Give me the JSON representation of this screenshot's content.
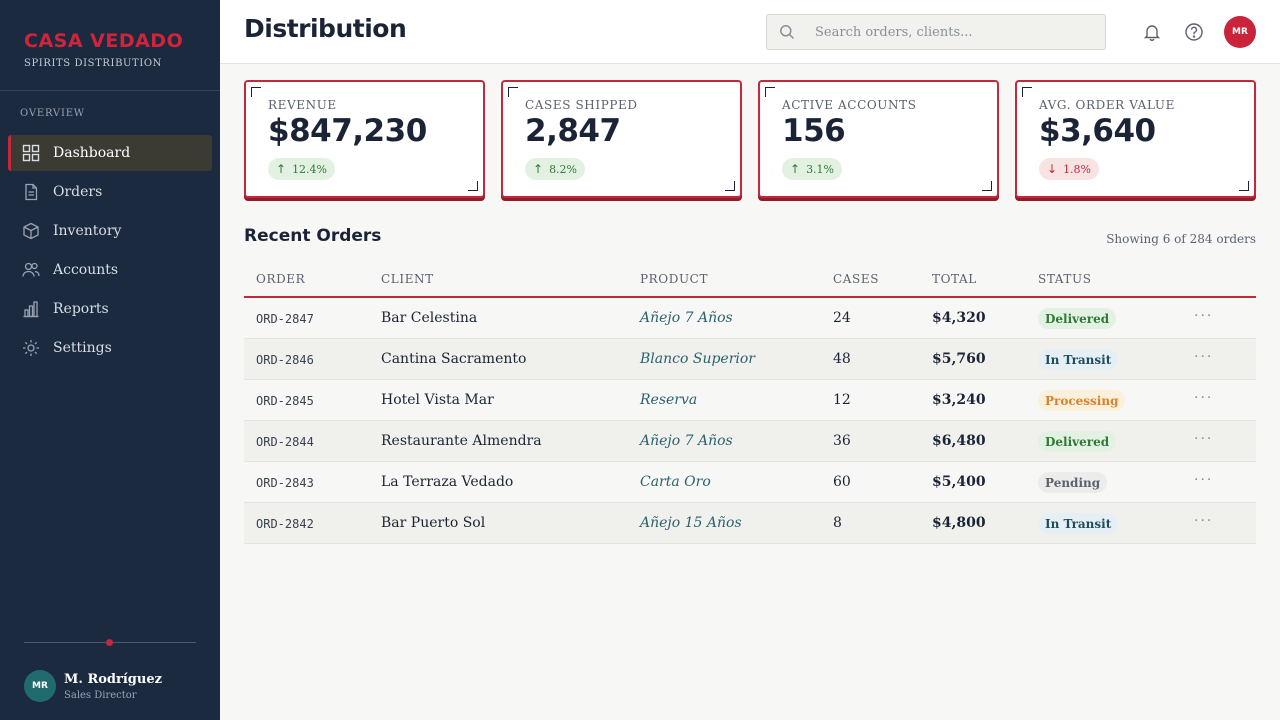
{
  "brand": {
    "name": "CASA VEDADO",
    "subtitle": "SPIRITS DISTRIBUTION"
  },
  "sidebar": {
    "section_label": "OVERVIEW",
    "items": [
      {
        "label": "Dashboard",
        "icon": "grid-icon",
        "active": true
      },
      {
        "label": "Orders",
        "icon": "document-icon",
        "active": false
      },
      {
        "label": "Inventory",
        "icon": "box-icon",
        "active": false
      },
      {
        "label": "Accounts",
        "icon": "users-icon",
        "active": false
      },
      {
        "label": "Reports",
        "icon": "bar-chart-icon",
        "active": false
      },
      {
        "label": "Settings",
        "icon": "gear-icon",
        "active": false
      }
    ]
  },
  "user": {
    "initials": "MR",
    "name": "M. Rodríguez",
    "role": "Sales Director"
  },
  "header": {
    "title": "Distribution",
    "search_placeholder": "Search orders, clients...",
    "avatar_initials": "MR"
  },
  "kpis": [
    {
      "label": "REVENUE",
      "value": "$847,230",
      "delta": "12.4%",
      "direction": "up"
    },
    {
      "label": "CASES SHIPPED",
      "value": "2,847",
      "delta": "8.2%",
      "direction": "up"
    },
    {
      "label": "ACTIVE ACCOUNTS",
      "value": "156",
      "delta": "3.1%",
      "direction": "up"
    },
    {
      "label": "AVG. ORDER VALUE",
      "value": "$3,640",
      "delta": "1.8%",
      "direction": "down"
    }
  ],
  "orders": {
    "title": "Recent Orders",
    "meta": "Showing 6 of 284 orders",
    "columns": [
      "ORDER",
      "CLIENT",
      "PRODUCT",
      "CASES",
      "TOTAL",
      "STATUS"
    ],
    "rows": [
      {
        "order": "ORD-2847",
        "client": "Bar Celestina",
        "product": "Añejo 7 Años",
        "cases": "24",
        "total": "$4,320",
        "status": "Delivered"
      },
      {
        "order": "ORD-2846",
        "client": "Cantina Sacramento",
        "product": "Blanco Superior",
        "cases": "48",
        "total": "$5,760",
        "status": "In Transit"
      },
      {
        "order": "ORD-2845",
        "client": "Hotel Vista Mar",
        "product": "Reserva",
        "cases": "12",
        "total": "$3,240",
        "status": "Processing"
      },
      {
        "order": "ORD-2844",
        "client": "Restaurante Almendra",
        "product": "Añejo 7 Años",
        "cases": "36",
        "total": "$6,480",
        "status": "Delivered"
      },
      {
        "order": "ORD-2843",
        "client": "La Terraza Vedado",
        "product": "Carta Oro",
        "cases": "60",
        "total": "$5,400",
        "status": "Pending"
      },
      {
        "order": "ORD-2842",
        "client": "Bar Puerto Sol",
        "product": "Añejo 15 Años",
        "cases": "8",
        "total": "$4,800",
        "status": "In Transit"
      }
    ],
    "row_menu": "···"
  },
  "colors": {
    "accent": "#c4283b",
    "sidebar": "#1b2a3f",
    "navy": "#1b2436",
    "teal": "#2a6270"
  }
}
